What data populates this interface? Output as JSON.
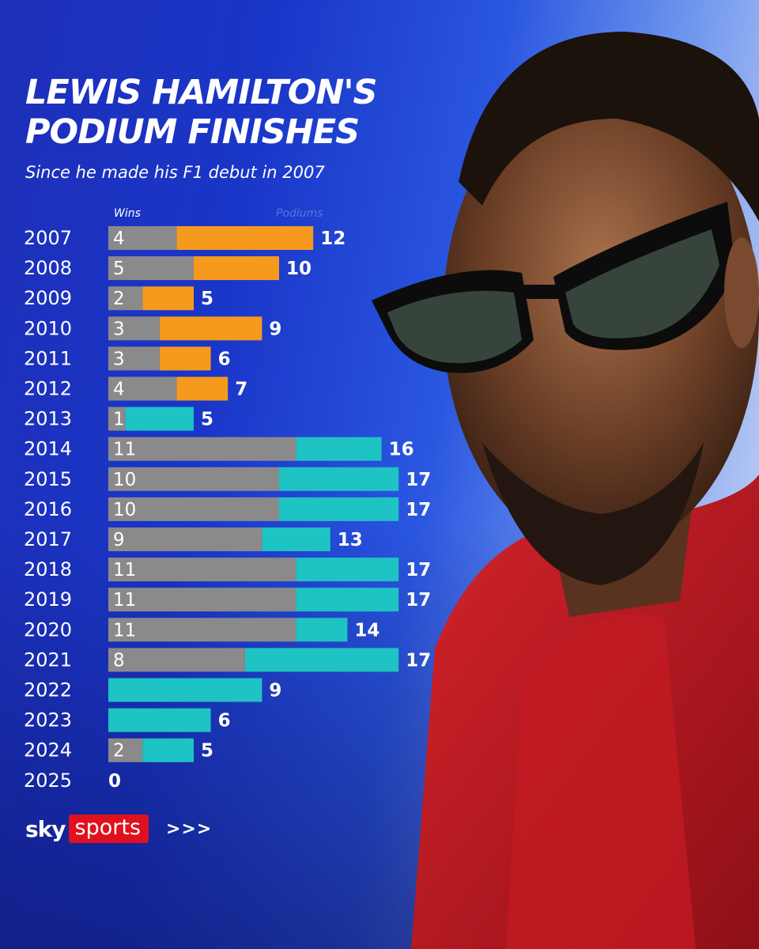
{
  "header": {
    "title_line1": "LEWIS HAMILTON'S",
    "title_line2": "PODIUM FINISHES",
    "subtitle": "Since he made his F1 debut in 2007"
  },
  "legend": {
    "wins_label": "Wins",
    "podiums_label": "Podiums"
  },
  "colors": {
    "wins": "#8a8a8a",
    "mclaren": "#f59a1c",
    "mercedes": "#1ec3c3",
    "text": "#ffffff"
  },
  "footer": {
    "brand_sky": "sky",
    "brand_sports": "sports",
    "chevrons": ">>>"
  },
  "chart_data": {
    "type": "bar",
    "orientation": "horizontal",
    "categories": [
      "2007",
      "2008",
      "2009",
      "2010",
      "2011",
      "2012",
      "2013",
      "2014",
      "2015",
      "2016",
      "2017",
      "2018",
      "2019",
      "2020",
      "2021",
      "2022",
      "2023",
      "2024",
      "2025"
    ],
    "series": [
      {
        "name": "Wins",
        "values": [
          4,
          5,
          2,
          3,
          3,
          4,
          1,
          11,
          10,
          10,
          9,
          11,
          11,
          11,
          8,
          0,
          0,
          2,
          0
        ]
      },
      {
        "name": "Podiums",
        "values": [
          12,
          10,
          5,
          9,
          6,
          7,
          5,
          16,
          17,
          17,
          13,
          17,
          17,
          14,
          17,
          9,
          6,
          5,
          0
        ]
      }
    ],
    "team_colors": [
      "mclaren",
      "mclaren",
      "mclaren",
      "mclaren",
      "mclaren",
      "mclaren",
      "mercedes",
      "mercedes",
      "mercedes",
      "mercedes",
      "mercedes",
      "mercedes",
      "mercedes",
      "mercedes",
      "mercedes",
      "mercedes",
      "mercedes",
      "mercedes",
      "mercedes"
    ],
    "xlim": [
      0,
      17
    ],
    "grid": false
  }
}
